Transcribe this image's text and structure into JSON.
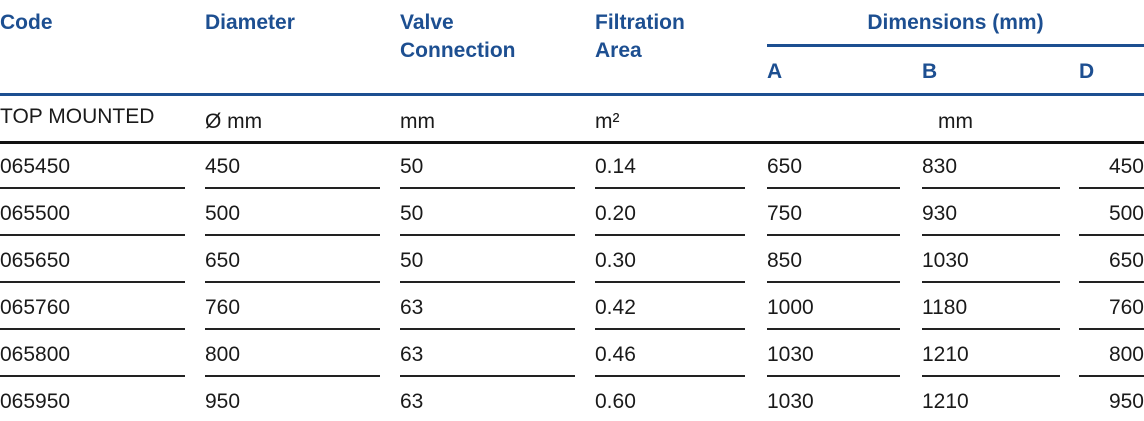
{
  "header": {
    "code": "Code",
    "diameter": "Diameter",
    "valve_connection": "Valve Connection",
    "filtration_area": "Filtration Area",
    "dimensions": "Dimensions (mm)",
    "a": "A",
    "b": "B",
    "d": "D"
  },
  "units": [
    "TOP MOUNTED",
    "Ø mm",
    "mm",
    "m²",
    "mm"
  ],
  "table": {
    "rows": [
      [
        "065450",
        "450",
        "50",
        "0.14",
        "650",
        "830",
        "450"
      ],
      [
        "065500",
        "500",
        "50",
        "0.20",
        "750",
        "930",
        "500"
      ],
      [
        "065650",
        "650",
        "50",
        "0.30",
        "850",
        "1030",
        "650"
      ],
      [
        "065760",
        "760",
        "63",
        "0.42",
        "1000",
        "1180",
        "760"
      ],
      [
        "065800",
        "800",
        "63",
        "0.46",
        "1030",
        "1210",
        "800"
      ],
      [
        "065950",
        "950",
        "63",
        "0.60",
        "1030",
        "1210",
        "950"
      ]
    ]
  }
}
